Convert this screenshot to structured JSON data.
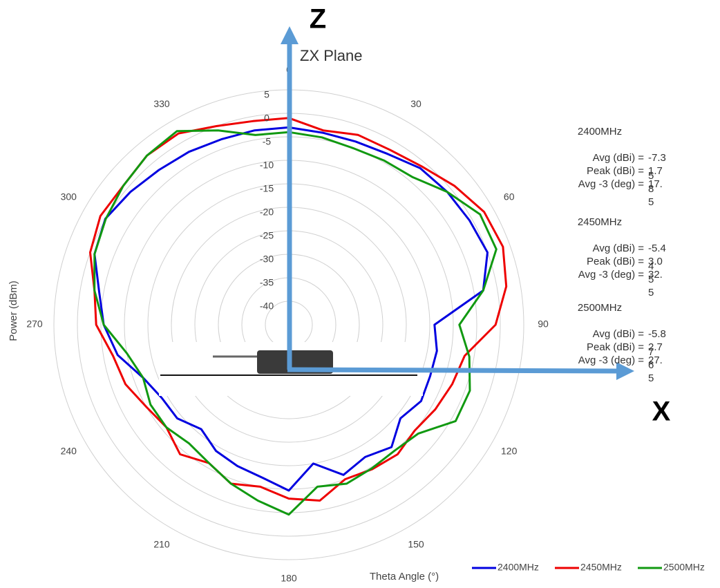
{
  "chart_data": {
    "type": "polar",
    "title": "ZX Plane",
    "z_label": "Z",
    "x_label": "X",
    "r_axis_label": "Power (dBm)",
    "theta_axis_label": "Theta  Angle (°)",
    "theta": [
      0,
      10,
      20,
      30,
      40,
      50,
      60,
      70,
      80,
      90,
      100,
      110,
      120,
      130,
      140,
      150,
      160,
      170,
      180,
      190,
      200,
      210,
      220,
      230,
      240,
      250,
      260,
      270,
      280,
      290,
      300,
      310,
      320,
      330,
      340,
      350
    ],
    "rlim": [
      -45,
      5
    ],
    "rticks": [
      -40,
      -35,
      -30,
      -25,
      -20,
      -15,
      -10,
      -5,
      0,
      5
    ],
    "thetaticks": [
      0,
      30,
      60,
      90,
      120,
      150,
      180,
      210,
      240,
      270,
      300,
      330
    ],
    "series": [
      {
        "name": "2400MHz",
        "color": "#0000e0",
        "values": [
          -3,
          -3.5,
          -3.5,
          -3,
          -1.5,
          -1,
          -0.6,
          0,
          -3,
          -14,
          -13,
          -13,
          -12.5,
          -14,
          -11,
          -12.5,
          -11,
          -15,
          -9.7,
          -12,
          -13,
          -14,
          -16,
          -14,
          -13.8,
          -12,
          -8,
          -5.6,
          -4,
          -1,
          0.1,
          -1,
          -2,
          -2.5,
          -3,
          -3
        ]
      },
      {
        "name": "2450MHz",
        "color": "#ee0000",
        "values": [
          -1,
          -3,
          -2,
          -2,
          -1,
          1,
          3,
          3.5,
          2,
          -1,
          -7,
          -8,
          -9,
          -10,
          -9,
          -9.5,
          -10,
          -7,
          -8,
          -10,
          -9,
          -11,
          -9,
          -11,
          -10,
          -8,
          -7,
          -4,
          -3,
          0,
          1.3,
          1,
          2,
          2,
          0,
          -1
        ]
      },
      {
        "name": "2500MHz",
        "color": "#119911",
        "values": [
          -4,
          -4.5,
          -5,
          -4.6,
          -4,
          -1,
          2,
          2,
          -3,
          -8.7,
          -6,
          -4,
          -4,
          -9,
          -10,
          -9.7,
          -9,
          -10,
          -4.6,
          -7,
          -9,
          -11,
          -12,
          -11,
          -11,
          -12,
          -10,
          -5.6,
          -3,
          -1,
          0,
          1,
          2,
          2.6,
          -1,
          -4
        ]
      }
    ],
    "stats": [
      {
        "band": "2400MHz",
        "rows": [
          {
            "label": "Avg (dBi) =",
            "value": "-7.35"
          },
          {
            "label": "Peak (dBi) =",
            "value": "1.78"
          },
          {
            "label": "Avg -3 (deg) =",
            "value": "17.5"
          }
        ]
      },
      {
        "band": "2450MHz",
        "rows": [
          {
            "label": "Avg (dBi) =",
            "value": "-5.44"
          },
          {
            "label": "Peak (dBi) =",
            "value": "3.05"
          },
          {
            "label": "Avg -3 (deg) =",
            "value": "32.5"
          }
        ]
      },
      {
        "band": "2500MHz",
        "rows": [
          {
            "label": "Avg (dBi) =",
            "value": "-5.87"
          },
          {
            "label": "Peak (dBi) =",
            "value": "2.76"
          },
          {
            "label": "Avg -3 (deg) =",
            "value": "27.5"
          }
        ]
      }
    ]
  }
}
